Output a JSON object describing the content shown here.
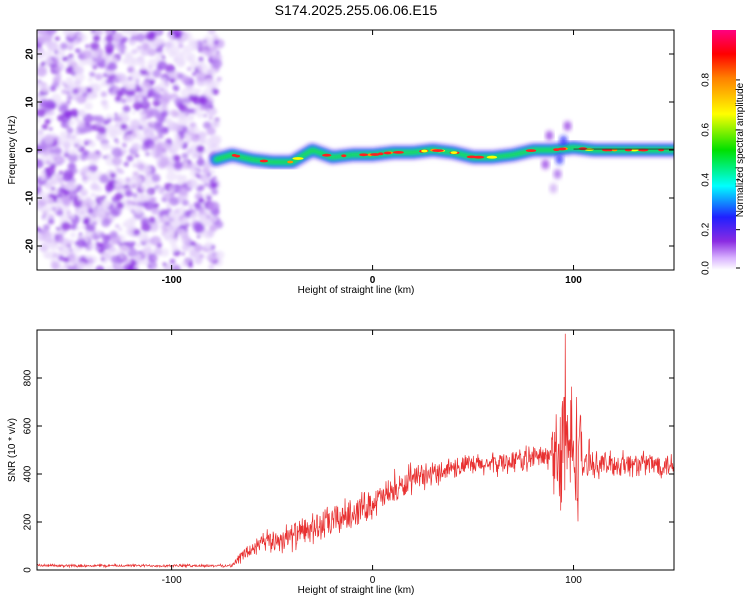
{
  "title": "S174.2025.255.06.06.E15",
  "chart_data": [
    {
      "type": "heatmap",
      "xlabel": "Height of straight line (km)",
      "ylabel": "Frequency (Hz)",
      "xlim": [
        -167,
        150
      ],
      "ylim": [
        -25,
        25
      ],
      "x_ticks": [
        -100,
        0,
        100
      ],
      "y_ticks": [
        -20,
        -10,
        0,
        10,
        20
      ],
      "colorbar": {
        "label": "Normalized spectral amplitude",
        "range": [
          0,
          1
        ],
        "ticks": [
          "0.0",
          "0.2",
          "0.4",
          "0.6",
          "0.8"
        ]
      },
      "noise_region_x": [
        -167,
        -80
      ],
      "signal_path": [
        {
          "x": -78,
          "y": -2
        },
        {
          "x": -70,
          "y": -1
        },
        {
          "x": -60,
          "y": -2
        },
        {
          "x": -50,
          "y": -2.5
        },
        {
          "x": -40,
          "y": -2.5
        },
        {
          "x": -30,
          "y": 0
        },
        {
          "x": -20,
          "y": -1.5
        },
        {
          "x": -10,
          "y": -1
        },
        {
          "x": 0,
          "y": -1
        },
        {
          "x": 10,
          "y": -0.5
        },
        {
          "x": 20,
          "y": -0.5
        },
        {
          "x": 30,
          "y": 0
        },
        {
          "x": 40,
          "y": -0.5
        },
        {
          "x": 50,
          "y": -1.5
        },
        {
          "x": 60,
          "y": -1.5
        },
        {
          "x": 70,
          "y": -1
        },
        {
          "x": 80,
          "y": 0
        },
        {
          "x": 90,
          "y": 0
        },
        {
          "x": 100,
          "y": 0.5
        },
        {
          "x": 110,
          "y": 0
        },
        {
          "x": 120,
          "y": 0
        },
        {
          "x": 130,
          "y": 0
        },
        {
          "x": 150,
          "y": 0
        }
      ]
    },
    {
      "type": "line",
      "xlabel": "Height of straight line (km)",
      "ylabel": "SNR (10 * v/v)",
      "xlim": [
        -167,
        150
      ],
      "ylim": [
        0,
        1000
      ],
      "x_ticks": [
        -100,
        0,
        100
      ],
      "y_ticks": [
        0,
        200,
        400,
        600,
        800
      ],
      "series_color": "#e83030",
      "envelope": [
        {
          "x": -167,
          "mean": 18,
          "spread": 10
        },
        {
          "x": -70,
          "mean": 18,
          "spread": 10
        },
        {
          "x": -65,
          "mean": 60,
          "spread": 50
        },
        {
          "x": -55,
          "mean": 110,
          "spread": 80
        },
        {
          "x": -40,
          "mean": 140,
          "spread": 100
        },
        {
          "x": -20,
          "mean": 200,
          "spread": 120
        },
        {
          "x": 0,
          "mean": 280,
          "spread": 110
        },
        {
          "x": 20,
          "mean": 370,
          "spread": 90
        },
        {
          "x": 40,
          "mean": 430,
          "spread": 80
        },
        {
          "x": 60,
          "mean": 440,
          "spread": 80
        },
        {
          "x": 80,
          "mean": 470,
          "spread": 90
        },
        {
          "x": 88,
          "mean": 470,
          "spread": 90
        },
        {
          "x": 92,
          "mean": 500,
          "spread": 480
        },
        {
          "x": 102,
          "mean": 500,
          "spread": 480
        },
        {
          "x": 106,
          "mean": 440,
          "spread": 90
        },
        {
          "x": 150,
          "mean": 440,
          "spread": 90
        }
      ]
    }
  ]
}
